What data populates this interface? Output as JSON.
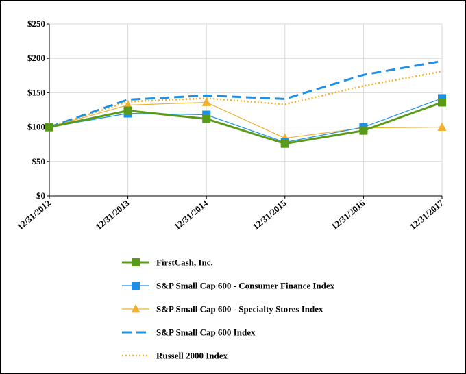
{
  "chart_data": {
    "type": "line",
    "title": "",
    "xlabel": "",
    "ylabel": "",
    "categories": [
      "12/31/2012",
      "12/31/2013",
      "12/31/2014",
      "12/31/2015",
      "12/31/2016",
      "12/31/2017"
    ],
    "ylim": [
      0,
      250
    ],
    "yticks": [
      0,
      50,
      100,
      150,
      200,
      250
    ],
    "ytick_labels": [
      "$0",
      "$50",
      "$100",
      "$150",
      "$200",
      "$250"
    ],
    "grid": true,
    "legend_position": "bottom",
    "series": [
      {
        "name": "FirstCash, Inc.",
        "values": [
          100,
          124,
          112,
          76,
          95,
          136
        ],
        "color": "#5a9a1a",
        "style": "solid-thick",
        "marker": "square"
      },
      {
        "name": "S&P Small Cap 600 - Consumer Finance Index",
        "values": [
          100,
          120,
          118,
          78,
          100,
          142
        ],
        "color": "#1e90e8",
        "style": "solid-thin",
        "marker": "square"
      },
      {
        "name": "S&P Small Cap 600 - Specialty Stores Index",
        "values": [
          100,
          132,
          136,
          84,
          99,
          100
        ],
        "color": "#f0b030",
        "style": "solid-thin",
        "marker": "triangle"
      },
      {
        "name": "S&P Small Cap 600 Index",
        "values": [
          100,
          140,
          146,
          141,
          176,
          196
        ],
        "color": "#1e90e8",
        "style": "dashed",
        "marker": "none"
      },
      {
        "name": "Russell 2000 Index",
        "values": [
          100,
          137,
          142,
          133,
          160,
          181
        ],
        "color": "#f0b030",
        "style": "dotted",
        "marker": "none"
      }
    ]
  }
}
